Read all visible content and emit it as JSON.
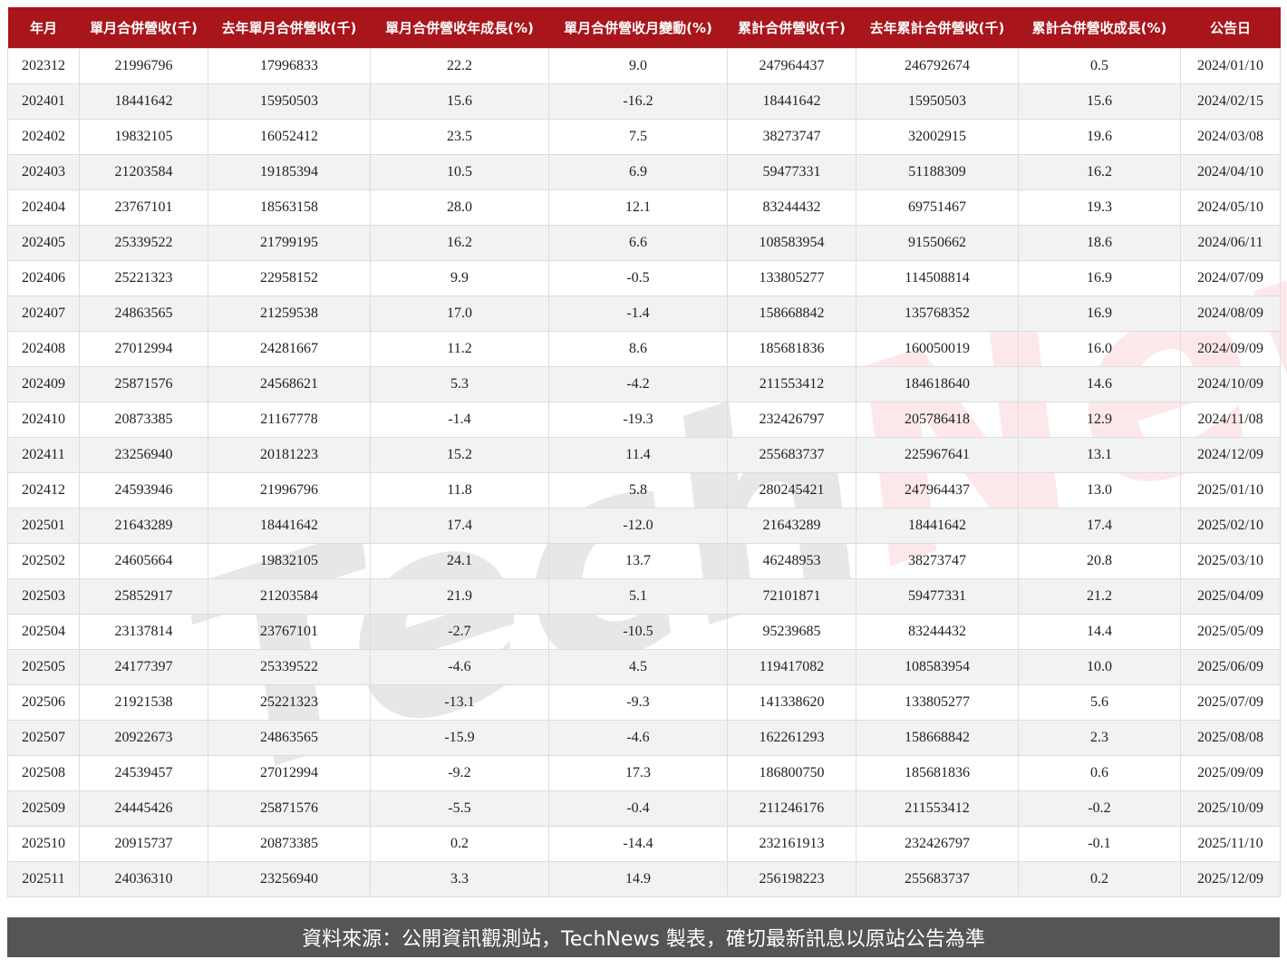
{
  "chart_data": {
    "type": "table",
    "columns": [
      "年月",
      "單月合併營收(千)",
      "去年單月合併營收(千)",
      "單月合併營收年成長(%)",
      "單月合併營收月變動(%)",
      "累計合併營收(千)",
      "去年累計合併營收(千)",
      "累計合併營收成長(%)",
      "公告日"
    ],
    "rows": [
      [
        "202312",
        "21996796",
        "17996833",
        "22.2",
        "9.0",
        "247964437",
        "246792674",
        "0.5",
        "2024/01/10"
      ],
      [
        "202401",
        "18441642",
        "15950503",
        "15.6",
        "-16.2",
        "18441642",
        "15950503",
        "15.6",
        "2024/02/15"
      ],
      [
        "202402",
        "19832105",
        "16052412",
        "23.5",
        "7.5",
        "38273747",
        "32002915",
        "19.6",
        "2024/03/08"
      ],
      [
        "202403",
        "21203584",
        "19185394",
        "10.5",
        "6.9",
        "59477331",
        "51188309",
        "16.2",
        "2024/04/10"
      ],
      [
        "202404",
        "23767101",
        "18563158",
        "28.0",
        "12.1",
        "83244432",
        "69751467",
        "19.3",
        "2024/05/10"
      ],
      [
        "202405",
        "25339522",
        "21799195",
        "16.2",
        "6.6",
        "108583954",
        "91550662",
        "18.6",
        "2024/06/11"
      ],
      [
        "202406",
        "25221323",
        "22958152",
        "9.9",
        "-0.5",
        "133805277",
        "114508814",
        "16.9",
        "2024/07/09"
      ],
      [
        "202407",
        "24863565",
        "21259538",
        "17.0",
        "-1.4",
        "158668842",
        "135768352",
        "16.9",
        "2024/08/09"
      ],
      [
        "202408",
        "27012994",
        "24281667",
        "11.2",
        "8.6",
        "185681836",
        "160050019",
        "16.0",
        "2024/09/09"
      ],
      [
        "202409",
        "25871576",
        "24568621",
        "5.3",
        "-4.2",
        "211553412",
        "184618640",
        "14.6",
        "2024/10/09"
      ],
      [
        "202410",
        "20873385",
        "21167778",
        "-1.4",
        "-19.3",
        "232426797",
        "205786418",
        "12.9",
        "2024/11/08"
      ],
      [
        "202411",
        "23256940",
        "20181223",
        "15.2",
        "11.4",
        "255683737",
        "225967641",
        "13.1",
        "2024/12/09"
      ],
      [
        "202412",
        "24593946",
        "21996796",
        "11.8",
        "5.8",
        "280245421",
        "247964437",
        "13.0",
        "2025/01/10"
      ],
      [
        "202501",
        "21643289",
        "18441642",
        "17.4",
        "-12.0",
        "21643289",
        "18441642",
        "17.4",
        "2025/02/10"
      ],
      [
        "202502",
        "24605664",
        "19832105",
        "24.1",
        "13.7",
        "46248953",
        "38273747",
        "20.8",
        "2025/03/10"
      ],
      [
        "202503",
        "25852917",
        "21203584",
        "21.9",
        "5.1",
        "72101871",
        "59477331",
        "21.2",
        "2025/04/09"
      ],
      [
        "202504",
        "23137814",
        "23767101",
        "-2.7",
        "-10.5",
        "95239685",
        "83244432",
        "14.4",
        "2025/05/09"
      ],
      [
        "202505",
        "24177397",
        "25339522",
        "-4.6",
        "4.5",
        "119417082",
        "108583954",
        "10.0",
        "2025/06/09"
      ],
      [
        "202506",
        "21921538",
        "25221323",
        "-13.1",
        "-9.3",
        "141338620",
        "133805277",
        "5.6",
        "2025/07/09"
      ],
      [
        "202507",
        "20922673",
        "24863565",
        "-15.9",
        "-4.6",
        "162261293",
        "158668842",
        "2.3",
        "2025/08/08"
      ],
      [
        "202508",
        "24539457",
        "27012994",
        "-9.2",
        "17.3",
        "186800750",
        "185681836",
        "0.6",
        "2025/09/09"
      ],
      [
        "202509",
        "24445426",
        "25871576",
        "-5.5",
        "-0.4",
        "211246176",
        "211553412",
        "-0.2",
        "2025/10/09"
      ],
      [
        "202510",
        "20915737",
        "20873385",
        "0.2",
        "-14.4",
        "232161913",
        "232426797",
        "-0.1",
        "2025/11/10"
      ],
      [
        "202511",
        "24036310",
        "23256940",
        "3.3",
        "14.9",
        "256198223",
        "255683737",
        "0.2",
        "2025/12/09"
      ]
    ],
    "header_color": "#a8151a"
  },
  "footer": "資料來源：公開資訊觀測站，TechNews 製表，確切最新訊息以原站公告為準",
  "watermark": {
    "part1": "Tech",
    "part2": "News"
  }
}
